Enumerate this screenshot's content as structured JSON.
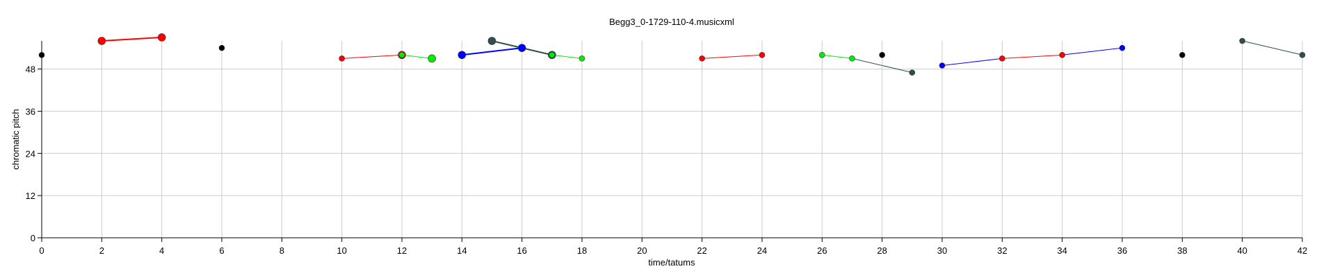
{
  "chart_data": {
    "type": "scatter",
    "title": "Begg3_0-1729-110-4.musicxml",
    "xlabel": "time/tatums",
    "ylabel": "chromatic pitch",
    "xlim": [
      0,
      42
    ],
    "ylim": [
      0,
      56
    ],
    "x_ticks": [
      0,
      2,
      4,
      6,
      8,
      10,
      12,
      14,
      16,
      18,
      20,
      22,
      24,
      26,
      28,
      30,
      32,
      34,
      36,
      38,
      40,
      42
    ],
    "y_ticks": [
      0,
      12,
      24,
      36,
      48
    ],
    "grid": true,
    "segments": [
      {
        "color": "#ff0000",
        "points": [
          [
            2,
            56
          ],
          [
            4,
            57
          ]
        ],
        "size": "large"
      },
      {
        "color": "#ff0000",
        "points": [
          [
            10,
            51
          ],
          [
            12,
            52
          ]
        ],
        "size": "small"
      },
      {
        "color": "#00ee00",
        "points": [
          [
            12,
            52
          ],
          [
            13,
            51
          ]
        ],
        "size": "mixed"
      },
      {
        "color": "#0000ff",
        "points": [
          [
            14,
            52
          ],
          [
            16,
            54
          ]
        ],
        "size": "large"
      },
      {
        "color": "#2f4f4f",
        "points": [
          [
            15,
            56
          ],
          [
            16,
            54
          ],
          [
            17,
            52
          ]
        ],
        "size": "large"
      },
      {
        "color": "#00ee00",
        "points": [
          [
            17,
            52
          ],
          [
            18,
            51
          ]
        ],
        "size": "small"
      },
      {
        "color": "#ff0000",
        "points": [
          [
            22,
            51
          ],
          [
            24,
            52
          ]
        ],
        "size": "small"
      },
      {
        "color": "#00ee00",
        "points": [
          [
            26,
            52
          ],
          [
            27,
            51
          ]
        ],
        "size": "small"
      },
      {
        "color": "#2f4f4f",
        "points": [
          [
            27,
            51
          ],
          [
            29,
            47
          ]
        ],
        "size": "small"
      },
      {
        "color": "#0000ff",
        "points": [
          [
            30,
            49
          ],
          [
            32,
            51
          ]
        ],
        "size": "small"
      },
      {
        "color": "#ff0000",
        "points": [
          [
            32,
            51
          ],
          [
            34,
            52
          ]
        ],
        "size": "small"
      },
      {
        "color": "#0000ff",
        "points": [
          [
            34,
            52
          ],
          [
            36,
            54
          ]
        ],
        "size": "small"
      },
      {
        "color": "#2f4f4f",
        "points": [
          [
            40,
            56
          ],
          [
            42,
            52
          ]
        ],
        "size": "small"
      }
    ],
    "points": [
      {
        "x": 0,
        "y": 52,
        "color": "#000000",
        "size": "small"
      },
      {
        "x": 2,
        "y": 56,
        "color": "#ff0000",
        "size": "large"
      },
      {
        "x": 4,
        "y": 57,
        "color": "#ff0000",
        "size": "large"
      },
      {
        "x": 6,
        "y": 54,
        "color": "#000000",
        "size": "small"
      },
      {
        "x": 10,
        "y": 51,
        "color": "#ff0000",
        "size": "small"
      },
      {
        "x": 12,
        "y": 52,
        "color": "#ff0000",
        "size": "large"
      },
      {
        "x": 12,
        "y": 52,
        "color": "#00ee00",
        "size": "small"
      },
      {
        "x": 13,
        "y": 51,
        "color": "#00ee00",
        "size": "large"
      },
      {
        "x": 14,
        "y": 52,
        "color": "#0000ff",
        "size": "large"
      },
      {
        "x": 15,
        "y": 56,
        "color": "#2f4f4f",
        "size": "large"
      },
      {
        "x": 16,
        "y": 54,
        "color": "#0000ff",
        "size": "large"
      },
      {
        "x": 17,
        "y": 52,
        "color": "#2f4f4f",
        "size": "large"
      },
      {
        "x": 17,
        "y": 52,
        "color": "#00ee00",
        "size": "small"
      },
      {
        "x": 18,
        "y": 51,
        "color": "#00ee00",
        "size": "small"
      },
      {
        "x": 22,
        "y": 51,
        "color": "#ff0000",
        "size": "small"
      },
      {
        "x": 24,
        "y": 52,
        "color": "#ff0000",
        "size": "small"
      },
      {
        "x": 26,
        "y": 52,
        "color": "#00ee00",
        "size": "small"
      },
      {
        "x": 27,
        "y": 51,
        "color": "#00ee00",
        "size": "small"
      },
      {
        "x": 28,
        "y": 52,
        "color": "#000000",
        "size": "small"
      },
      {
        "x": 29,
        "y": 47,
        "color": "#2f4f4f",
        "size": "small"
      },
      {
        "x": 30,
        "y": 49,
        "color": "#0000ff",
        "size": "small"
      },
      {
        "x": 32,
        "y": 51,
        "color": "#ff0000",
        "size": "small"
      },
      {
        "x": 34,
        "y": 52,
        "color": "#ff0000",
        "size": "small"
      },
      {
        "x": 36,
        "y": 54,
        "color": "#0000ff",
        "size": "small"
      },
      {
        "x": 38,
        "y": 52,
        "color": "#000000",
        "size": "small"
      },
      {
        "x": 40,
        "y": 56,
        "color": "#2f4f4f",
        "size": "small"
      },
      {
        "x": 42,
        "y": 52,
        "color": "#2f4f4f",
        "size": "small"
      }
    ]
  }
}
